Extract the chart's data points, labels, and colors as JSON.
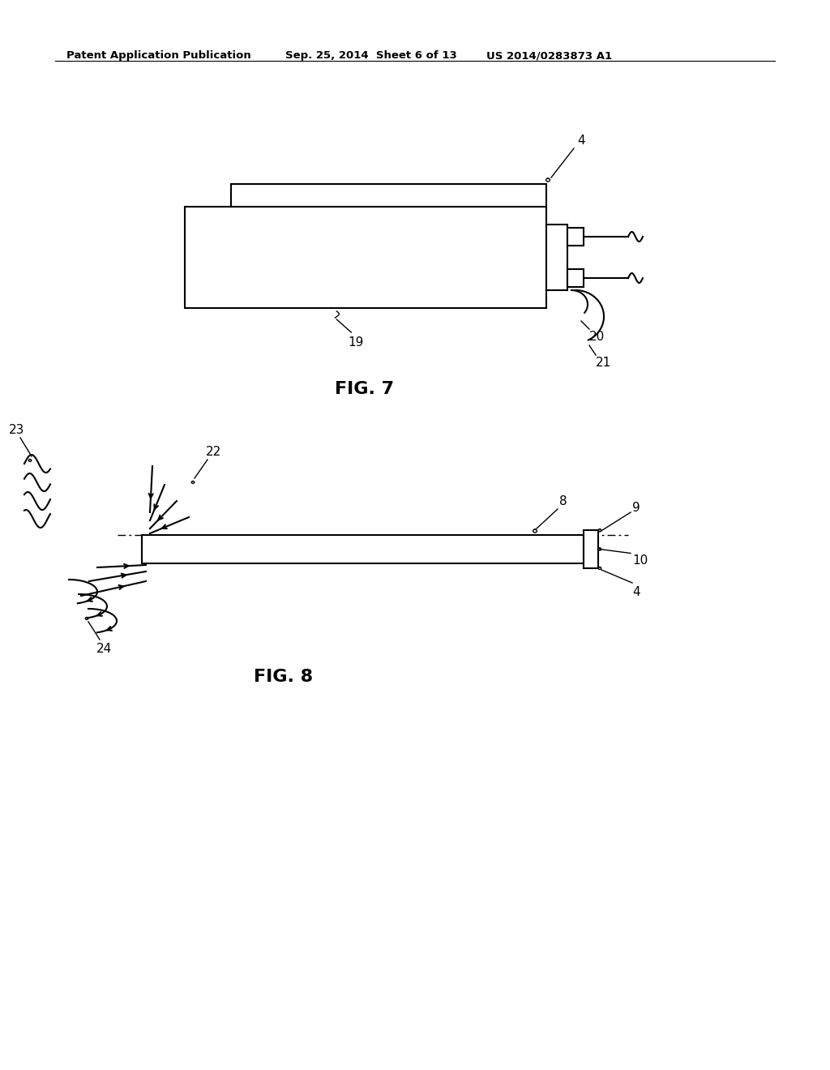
{
  "background_color": "#ffffff",
  "header_left": "Patent Application Publication",
  "header_mid": "Sep. 25, 2014  Sheet 6 of 13",
  "header_right": "US 2014/0283873 A1",
  "fig7_label": "FIG. 7",
  "fig8_label": "FIG. 8",
  "line_color": "#000000",
  "text_color": "#000000"
}
